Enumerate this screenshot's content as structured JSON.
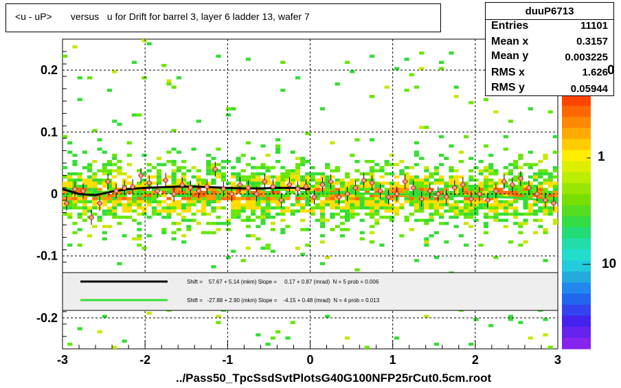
{
  "title": "<u - uP>       versus   u for Drift for barrel 3, layer 6 ladder 13, wafer 7",
  "file_label": "../Pass50_TpcSsdSvtPlotsG40G100NFP25rCut0.5cm.root",
  "stats": {
    "name": "duuP6713",
    "rows": [
      {
        "label": "Entries",
        "value": "11101"
      },
      {
        "label": "Mean x",
        "value": "0.3157"
      },
      {
        "label": "Mean y",
        "value": "0.003225"
      },
      {
        "label": "RMS x",
        "value": "1.626"
      },
      {
        "label": "RMS y",
        "value": "0.05944"
      }
    ]
  },
  "legend": [
    {
      "text": "Shift =    57.67 + 5.14 (mkm) Slope =     0.17 + 0.87 (mrad)  N = 5 prob = 0.006",
      "color": "#000000"
    },
    {
      "text": "Shift =   -27.88 + 2.90 (mkm) Slope =    -4.15 + 0.48 (mrad)  N = 4 prob = 0.013",
      "color": "#33dd33"
    }
  ],
  "colorbar": {
    "labels": [
      "1",
      "10"
    ],
    "top_fragment": "0"
  },
  "chart_data": {
    "type": "heatmap",
    "title": "<u - uP>       versus   u for Drift for barrel 3, layer 6 ladder 13, wafer 7",
    "xlabel": "../Pass50_TpcSsdSvtPlotsG40G100NFP25rCut0.5cm.root",
    "ylabel": "",
    "xlim": [
      -3,
      3
    ],
    "ylim": [
      -0.25,
      0.25
    ],
    "x_ticks": [
      "-3",
      "-2",
      "-1",
      "0",
      "1",
      "2",
      "3"
    ],
    "y_ticks": [
      "-0.2",
      "-0.1",
      "0",
      "0.1",
      "0.2"
    ],
    "grid": true,
    "log_z": true,
    "profile": {
      "x": [
        -2.95,
        -2.85,
        -2.75,
        -2.65,
        -2.55,
        -2.45,
        -2.35,
        -2.25,
        -2.15,
        -2.05,
        -1.95,
        -1.85,
        -1.75,
        -1.65,
        -1.55,
        -1.45,
        -1.35,
        -1.25,
        -1.15,
        -1.05,
        -0.95,
        -0.85,
        -0.75,
        -0.65,
        -0.55,
        -0.45,
        -0.35,
        -0.25,
        -0.15,
        -0.05,
        0.05,
        0.15,
        0.25,
        0.35,
        0.45,
        0.55,
        0.65,
        0.75,
        0.85,
        0.95,
        1.05,
        1.15,
        1.25,
        1.35,
        1.45,
        1.55,
        1.65,
        1.75,
        1.85,
        1.95,
        2.05,
        2.15,
        2.25,
        2.35,
        2.45,
        2.55,
        2.65,
        2.75,
        2.85,
        2.95
      ],
      "y": [
        -0.015,
        0.008,
        0.005,
        -0.038,
        -0.015,
        0.02,
        0.005,
        0.01,
        0.012,
        0.03,
        0.018,
        0.005,
        0.022,
        0.0,
        0.015,
        0.01,
        0.005,
        0.012,
        0.04,
        0.008,
        0.0,
        0.015,
        0.01,
        0.0,
        0.02,
        0.012,
        -0.01,
        0.015,
        0.008,
        0.012,
        -0.005,
        0.015,
        0.02,
        -0.005,
        0.0,
        0.01,
        0.022,
        0.018,
        0.005,
        -0.005,
        0.0,
        0.02,
        0.01,
        -0.008,
        0.005,
        0.0,
        -0.005,
        0.01,
        0.015,
        -0.008,
        0.0,
        -0.01,
        0.005,
        0.02,
        0.015,
        0.025,
        0.01,
        0.0,
        -0.01,
        -0.015
      ],
      "yerr": 0.012
    },
    "fits": [
      {
        "name": "Shift =    57.67 + 5.14 (mkm) Slope =     0.17 + 0.87 (mrad)  N = 5 prob = 0.006",
        "x": [
          -3.0,
          -2.8,
          -2.6,
          -2.4,
          -2.2,
          -2.0,
          -1.8,
          -1.6,
          -1.4,
          -1.2,
          -1.0,
          -0.8,
          -0.6,
          -0.4,
          -0.2,
          0.0
        ],
        "y": [
          0.008,
          0.0,
          -0.002,
          0.004,
          0.008,
          0.01,
          0.011,
          0.012,
          0.012,
          0.011,
          0.01,
          0.009,
          0.009,
          0.01,
          0.01,
          0.008
        ],
        "color": "#000000"
      },
      {
        "name": "Shift =   -27.88 + 2.90 (mkm) Slope =    -4.15 + 0.48 (mrad)  N = 4 prob = 0.013",
        "x": [
          0.0,
          0.5,
          1.0,
          1.5,
          2.0,
          2.5,
          3.0
        ],
        "y": [
          0.002,
          0.001,
          0.0,
          -0.002,
          -0.004,
          -0.006,
          -0.012
        ],
        "color": "#33dd33"
      }
    ]
  }
}
